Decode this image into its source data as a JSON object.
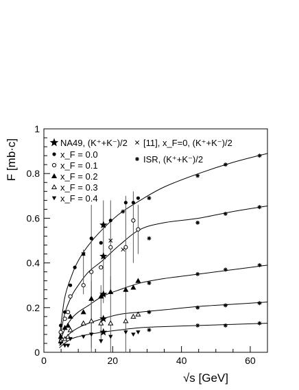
{
  "chart_data": {
    "type": "scatter",
    "xlabel": "√s [GeV]",
    "ylabel": "F [mb·c]",
    "xlim": [
      0,
      65
    ],
    "ylim": [
      0,
      1
    ],
    "xticks": [
      0,
      20,
      40,
      60
    ],
    "yticks": [
      0,
      0.2,
      0.4,
      0.6,
      0.8,
      1
    ],
    "xtick_labels": [
      "0",
      "20",
      "40",
      "60"
    ],
    "ytick_labels": [
      "0",
      "0.2",
      "0.4",
      "0.6",
      "0.8",
      "1"
    ],
    "legend_placement": "top-left",
    "legend": [
      {
        "marker": "star",
        "text": "NA49, (K⁺+K⁻)/2"
      },
      {
        "marker": "filled-circle",
        "text": "x_F = 0.0"
      },
      {
        "marker": "open-circle",
        "text": "x_F = 0.1"
      },
      {
        "marker": "filled-triangle-up",
        "text": "x_F = 0.2"
      },
      {
        "marker": "open-triangle-up",
        "text": "x_F = 0.3"
      },
      {
        "marker": "filled-triangle-down",
        "text": "x_F = 0.4"
      },
      {
        "marker": "cross",
        "text": "[11], x_F=0, (K⁺+K⁻)/2"
      },
      {
        "marker": "asterisk",
        "text": "ISR, (K⁺+K⁻)/2"
      }
    ],
    "series": [
      {
        "name": "NA49, (K⁺+K⁻)/2",
        "marker": "star",
        "points": [
          [
            17.3,
            0.57
          ],
          [
            17.3,
            0.43
          ],
          [
            17.3,
            0.26
          ],
          [
            17.3,
            0.15
          ],
          [
            17.3,
            0.09
          ]
        ]
      },
      {
        "name": "x_F = 0.0",
        "marker": "filled-circle",
        "points": [
          [
            4.9,
            0.12
          ],
          [
            6.1,
            0.18
          ],
          [
            7.7,
            0.3
          ],
          [
            9.0,
            0.38
          ],
          [
            11.5,
            0.44
          ],
          [
            13.8,
            0.51
          ],
          [
            16.6,
            0.49
          ],
          [
            19.4,
            0.59
          ],
          [
            23.8,
            0.67
          ],
          [
            26.0,
            0.67
          ],
          [
            27.4,
            0.69
          ]
        ]
      },
      {
        "name": "x_F = 0.1",
        "marker": "open-circle",
        "points": [
          [
            4.9,
            0.09
          ],
          [
            6.1,
            0.15
          ],
          [
            7.0,
            0.18
          ],
          [
            7.7,
            0.25
          ],
          [
            11.5,
            0.3
          ],
          [
            13.8,
            0.36
          ],
          [
            16.6,
            0.38
          ],
          [
            19.4,
            0.47
          ],
          [
            23.8,
            0.47
          ],
          [
            26.0,
            0.59
          ],
          [
            27.4,
            0.55
          ]
        ]
      },
      {
        "name": "x_F = 0.2",
        "marker": "filled-triangle-up",
        "points": [
          [
            4.9,
            0.07
          ],
          [
            6.1,
            0.11
          ],
          [
            7.0,
            0.12
          ],
          [
            7.7,
            0.16
          ],
          [
            11.5,
            0.18
          ],
          [
            13.8,
            0.24
          ],
          [
            16.6,
            0.25
          ],
          [
            19.4,
            0.27
          ],
          [
            23.8,
            0.28
          ],
          [
            26.0,
            0.29
          ],
          [
            27.4,
            0.32
          ]
        ]
      },
      {
        "name": "x_F = 0.3",
        "marker": "open-triangle-up",
        "points": [
          [
            4.9,
            0.05
          ],
          [
            6.1,
            0.06
          ],
          [
            7.0,
            0.07
          ],
          [
            7.7,
            0.1
          ],
          [
            11.5,
            0.13
          ],
          [
            13.8,
            0.14
          ],
          [
            16.6,
            0.13
          ],
          [
            19.4,
            0.13
          ],
          [
            23.8,
            0.14
          ],
          [
            26.0,
            0.16
          ],
          [
            27.4,
            0.17
          ]
        ]
      },
      {
        "name": "x_F = 0.4",
        "marker": "filled-triangle-down",
        "points": [
          [
            4.9,
            0.04
          ],
          [
            6.1,
            0.03
          ],
          [
            7.0,
            0.03
          ],
          [
            7.7,
            0.06
          ],
          [
            11.5,
            0.07
          ],
          [
            13.8,
            0.08
          ],
          [
            16.6,
            0.05
          ],
          [
            19.4,
            0.07
          ],
          [
            23.8,
            0.09
          ],
          [
            26.0,
            0.08
          ],
          [
            27.4,
            0.09
          ]
        ]
      },
      {
        "name": "[11], x_F=0, (K⁺+K⁻)/2",
        "marker": "cross",
        "points": [
          [
            11.5,
            0.44
          ],
          [
            19.4,
            0.5
          ],
          [
            23.0,
            0.46
          ]
        ]
      },
      {
        "name": "ISR, (K⁺+K⁻)/2",
        "marker": "asterisk",
        "points": [
          [
            23.0,
            0.63
          ],
          [
            30.6,
            0.69
          ],
          [
            44.7,
            0.79
          ],
          [
            52.8,
            0.84
          ],
          [
            62.7,
            0.88
          ],
          [
            30.6,
            0.51
          ],
          [
            44.7,
            0.58
          ],
          [
            52.8,
            0.62
          ],
          [
            62.7,
            0.65
          ],
          [
            30.6,
            0.31
          ],
          [
            44.7,
            0.35
          ],
          [
            52.8,
            0.37
          ],
          [
            62.7,
            0.39
          ],
          [
            30.6,
            0.18
          ],
          [
            44.7,
            0.2
          ],
          [
            52.8,
            0.21
          ],
          [
            62.7,
            0.22
          ],
          [
            30.6,
            0.1
          ],
          [
            44.7,
            0.12
          ],
          [
            52.8,
            0.12
          ],
          [
            62.7,
            0.13
          ]
        ]
      }
    ],
    "fit_curves": [
      {
        "points": [
          [
            4.5,
            0.06
          ],
          [
            6,
            0.24
          ],
          [
            8,
            0.34
          ],
          [
            10,
            0.41
          ],
          [
            13,
            0.48
          ],
          [
            17,
            0.55
          ],
          [
            22,
            0.62
          ],
          [
            28,
            0.68
          ],
          [
            35,
            0.74
          ],
          [
            45,
            0.8
          ],
          [
            55,
            0.85
          ],
          [
            65,
            0.89
          ]
        ]
      },
      {
        "points": [
          [
            4.5,
            0.05
          ],
          [
            6,
            0.17
          ],
          [
            8,
            0.25
          ],
          [
            10,
            0.3
          ],
          [
            13,
            0.36
          ],
          [
            17,
            0.41
          ],
          [
            22,
            0.48
          ],
          [
            28,
            0.55
          ],
          [
            35,
            0.58
          ],
          [
            45,
            0.6
          ],
          [
            55,
            0.63
          ],
          [
            65,
            0.655
          ]
        ]
      },
      {
        "points": [
          [
            4.5,
            0.04
          ],
          [
            6,
            0.1
          ],
          [
            8,
            0.15
          ],
          [
            10,
            0.18
          ],
          [
            13,
            0.21
          ],
          [
            17,
            0.25
          ],
          [
            22,
            0.28
          ],
          [
            28,
            0.31
          ],
          [
            35,
            0.33
          ],
          [
            45,
            0.35
          ],
          [
            55,
            0.37
          ],
          [
            65,
            0.39
          ]
        ]
      },
      {
        "points": [
          [
            4.5,
            0.03
          ],
          [
            6,
            0.06
          ],
          [
            8,
            0.09
          ],
          [
            10,
            0.11
          ],
          [
            13,
            0.13
          ],
          [
            17,
            0.15
          ],
          [
            22,
            0.17
          ],
          [
            28,
            0.18
          ],
          [
            35,
            0.19
          ],
          [
            45,
            0.205
          ],
          [
            55,
            0.215
          ],
          [
            65,
            0.225
          ]
        ]
      },
      {
        "points": [
          [
            4.5,
            0.02
          ],
          [
            6,
            0.04
          ],
          [
            8,
            0.06
          ],
          [
            10,
            0.07
          ],
          [
            13,
            0.08
          ],
          [
            17,
            0.09
          ],
          [
            22,
            0.1
          ],
          [
            28,
            0.11
          ],
          [
            35,
            0.115
          ],
          [
            45,
            0.12
          ],
          [
            55,
            0.125
          ],
          [
            65,
            0.13
          ]
        ]
      }
    ],
    "error_bars": [
      {
        "x": 13.8,
        "y": 0.51,
        "lo": 0.02,
        "hi": 0.66
      },
      {
        "x": 17.3,
        "y": 0.5,
        "lo": 0.22,
        "hi": 0.68
      },
      {
        "x": 19.4,
        "y": 0.58,
        "lo": 0.28,
        "hi": 0.68
      },
      {
        "x": 23.8,
        "y": 0.46,
        "lo": 0.0,
        "hi": 0.7
      },
      {
        "x": 26.0,
        "y": 0.6,
        "lo": 0.4,
        "hi": 0.72
      },
      {
        "x": 27.4,
        "y": 0.58,
        "lo": 0.44,
        "hi": 0.66
      },
      {
        "x": 11.5,
        "y": 0.4,
        "lo": 0.26,
        "hi": 0.46
      },
      {
        "x": 13.8,
        "y": 0.2,
        "lo": 0.0,
        "hi": 0.32
      },
      {
        "x": 16.6,
        "y": 0.2,
        "lo": 0.04,
        "hi": 0.3
      },
      {
        "x": 19.4,
        "y": 0.2,
        "lo": 0.0,
        "hi": 0.34
      }
    ]
  }
}
